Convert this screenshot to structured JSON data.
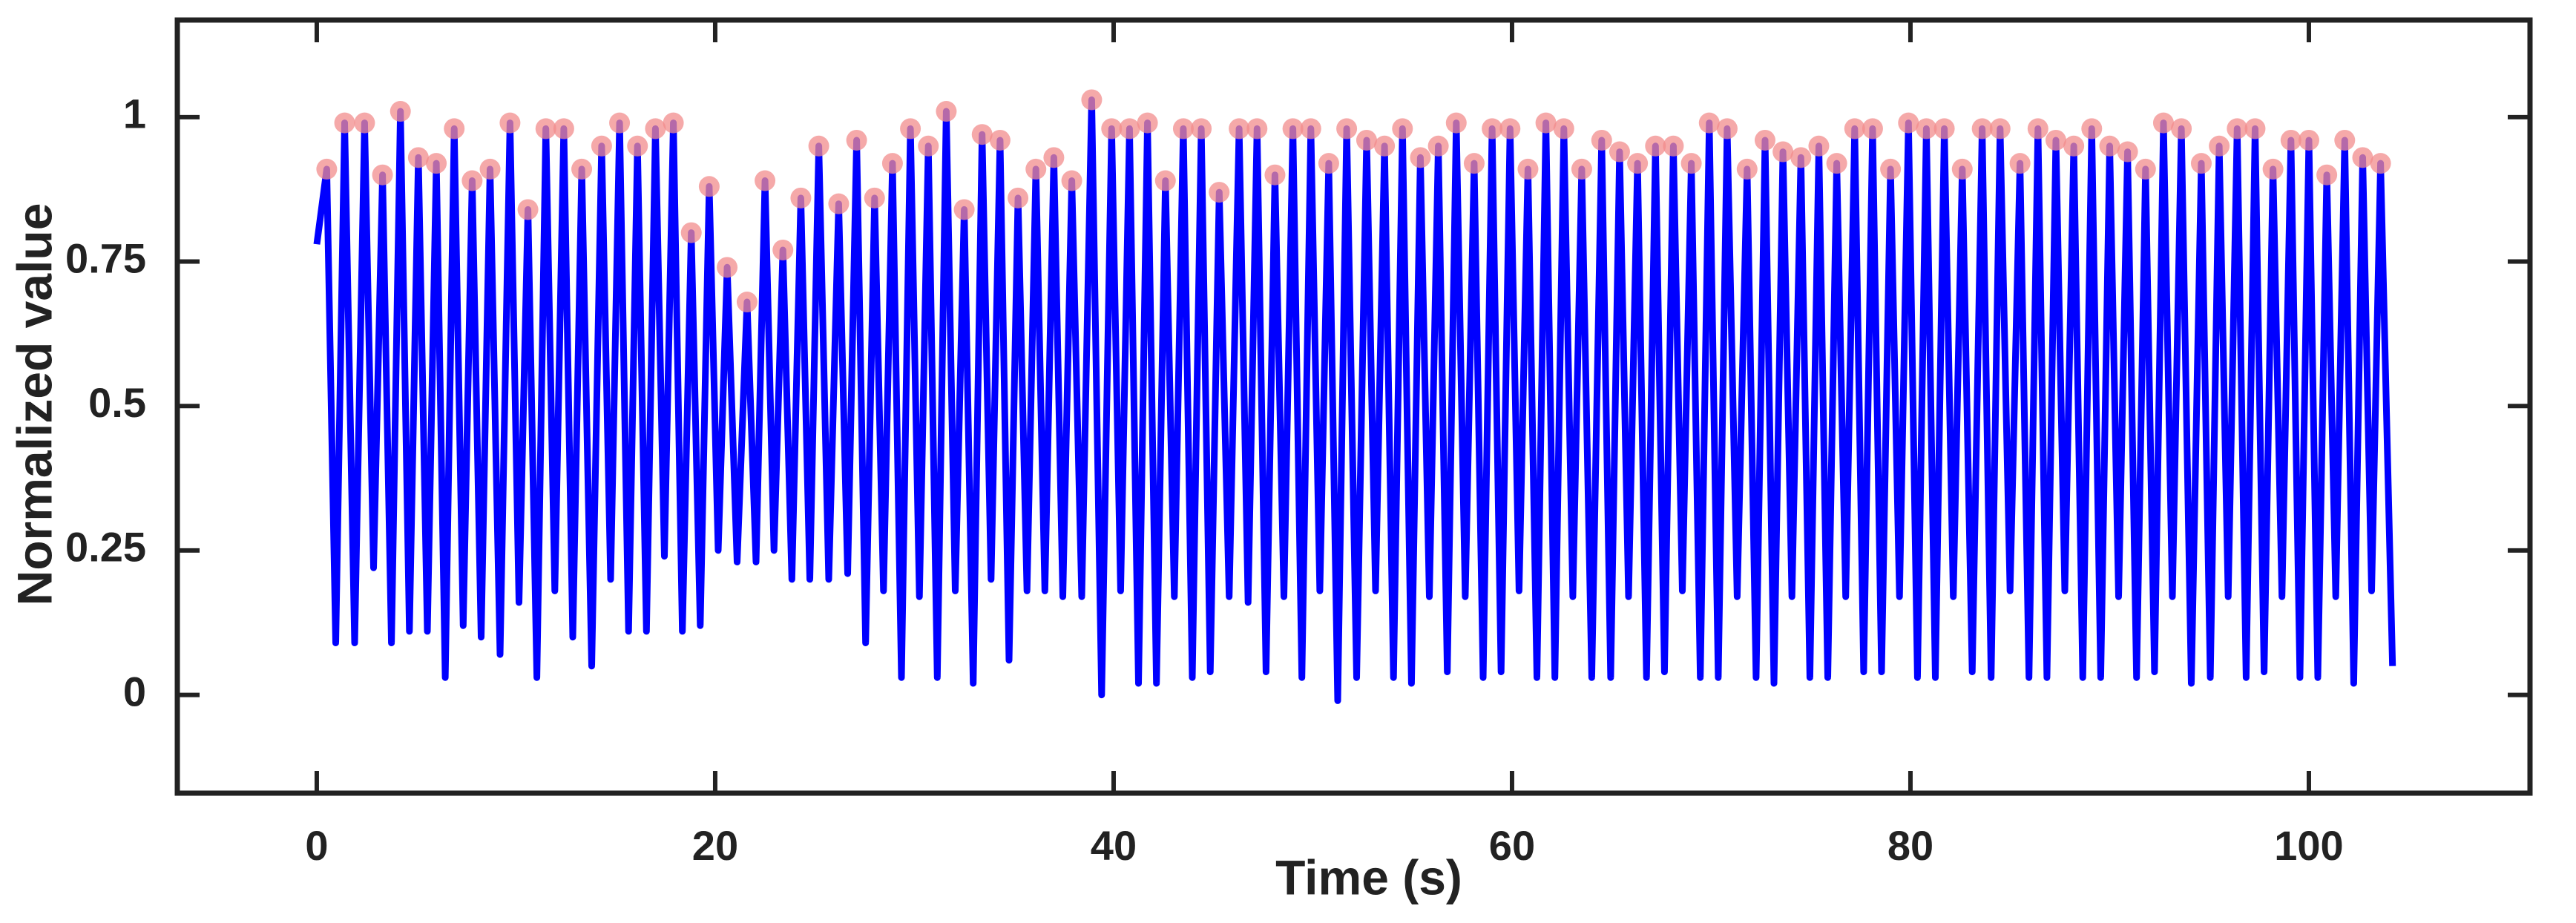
{
  "chart_data": {
    "type": "line",
    "xlabel": "Time (s)",
    "ylabel": "Normalized value",
    "xlim": [
      -7,
      111.1
    ],
    "ylim": [
      -0.17,
      1.168
    ],
    "xticks": [
      0,
      20,
      40,
      60,
      80,
      100
    ],
    "yticks": [
      0,
      0.25,
      0.5,
      0.75,
      1
    ],
    "series": [
      {
        "type": "line",
        "color": "#0000ff",
        "x": [
          0,
          0.5,
          0.95,
          1.4,
          1.9,
          2.4,
          2.85,
          3.3,
          3.75,
          4.2,
          4.65,
          5.1,
          5.55,
          6.0,
          6.45,
          6.9,
          7.35,
          7.8,
          8.25,
          8.7,
          9.2,
          9.7,
          10.15,
          10.6,
          11.05,
          11.5,
          11.95,
          12.4,
          12.85,
          13.3,
          13.8,
          14.3,
          14.75,
          15.2,
          15.65,
          16.1,
          16.55,
          17.0,
          17.45,
          17.9,
          18.35,
          18.8,
          19.25,
          19.7,
          20.15,
          20.6,
          21.1,
          21.6,
          22.05,
          22.5,
          22.95,
          23.4,
          23.85,
          24.3,
          24.75,
          25.2,
          25.7,
          26.2,
          26.65,
          27.1,
          27.55,
          28.0,
          28.45,
          28.9,
          29.35,
          29.8,
          30.25,
          30.7,
          31.15,
          31.6,
          32.05,
          32.5,
          32.95,
          33.4,
          33.85,
          34.3,
          34.75,
          35.2,
          35.65,
          36.1,
          36.55,
          37.0,
          37.45,
          37.9,
          38.4,
          38.9,
          39.4,
          39.9,
          40.35,
          40.8,
          41.25,
          41.7,
          42.15,
          42.6,
          43.05,
          43.5,
          43.95,
          44.4,
          44.85,
          45.3,
          45.8,
          46.3,
          46.75,
          47.2,
          47.65,
          48.1,
          48.55,
          49.0,
          49.45,
          49.9,
          50.35,
          50.8,
          51.25,
          51.7,
          52.2,
          52.7,
          53.15,
          53.6,
          54.05,
          54.5,
          54.95,
          55.4,
          55.85,
          56.3,
          56.75,
          57.2,
          57.65,
          58.1,
          58.55,
          59.0,
          59.45,
          59.9,
          60.35,
          60.8,
          61.25,
          61.7,
          62.15,
          62.6,
          63.05,
          63.5,
          64.0,
          64.5,
          64.95,
          65.4,
          65.85,
          66.3,
          66.75,
          67.2,
          67.65,
          68.1,
          68.55,
          69.0,
          69.45,
          69.9,
          70.35,
          70.8,
          71.3,
          71.8,
          72.25,
          72.7,
          73.15,
          73.6,
          74.05,
          74.5,
          74.95,
          75.4,
          75.85,
          76.3,
          76.75,
          77.2,
          77.65,
          78.1,
          78.55,
          79.0,
          79.45,
          79.9,
          80.35,
          80.8,
          81.25,
          81.7,
          82.15,
          82.6,
          83.1,
          83.6,
          84.05,
          84.5,
          85.0,
          85.5,
          85.95,
          86.4,
          86.85,
          87.3,
          87.75,
          88.2,
          88.65,
          89.1,
          89.55,
          90.0,
          90.45,
          90.9,
          91.35,
          91.8,
          92.25,
          92.7,
          93.15,
          93.6,
          94.1,
          94.6,
          95.05,
          95.5,
          95.95,
          96.4,
          96.85,
          97.3,
          97.75,
          98.2,
          98.65,
          99.1,
          99.55,
          100.0,
          100.45,
          100.9,
          101.35,
          101.8,
          102.25,
          102.7,
          103.15,
          103.6,
          104.2
        ],
        "values": [
          0.78,
          0.91,
          0.09,
          0.99,
          0.09,
          0.99,
          0.22,
          0.9,
          0.09,
          1.01,
          0.11,
          0.93,
          0.11,
          0.92,
          0.03,
          0.98,
          0.12,
          0.89,
          0.1,
          0.91,
          0.07,
          0.99,
          0.16,
          0.84,
          0.03,
          0.98,
          0.18,
          0.98,
          0.1,
          0.91,
          0.05,
          0.95,
          0.2,
          0.99,
          0.11,
          0.95,
          0.11,
          0.98,
          0.24,
          0.99,
          0.11,
          0.8,
          0.12,
          0.88,
          0.25,
          0.74,
          0.23,
          0.68,
          0.23,
          0.89,
          0.25,
          0.77,
          0.2,
          0.86,
          0.2,
          0.95,
          0.2,
          0.85,
          0.21,
          0.96,
          0.09,
          0.86,
          0.18,
          0.92,
          0.03,
          0.98,
          0.17,
          0.95,
          0.03,
          1.01,
          0.18,
          0.84,
          0.02,
          0.97,
          0.2,
          0.96,
          0.06,
          0.86,
          0.18,
          0.91,
          0.18,
          0.93,
          0.17,
          0.89,
          0.17,
          1.03,
          0.0,
          0.98,
          0.18,
          0.98,
          0.02,
          0.99,
          0.02,
          0.89,
          0.17,
          0.98,
          0.03,
          0.98,
          0.04,
          0.87,
          0.17,
          0.98,
          0.16,
          0.98,
          0.04,
          0.9,
          0.17,
          0.98,
          0.03,
          0.98,
          0.18,
          0.92,
          -0.01,
          0.98,
          0.03,
          0.96,
          0.18,
          0.95,
          0.03,
          0.98,
          0.02,
          0.93,
          0.17,
          0.95,
          0.04,
          0.99,
          0.17,
          0.92,
          0.03,
          0.98,
          0.04,
          0.98,
          0.18,
          0.91,
          0.03,
          0.99,
          0.03,
          0.98,
          0.17,
          0.91,
          0.03,
          0.96,
          0.03,
          0.94,
          0.17,
          0.92,
          0.03,
          0.95,
          0.04,
          0.95,
          0.18,
          0.92,
          0.03,
          0.99,
          0.03,
          0.98,
          0.17,
          0.91,
          0.03,
          0.96,
          0.02,
          0.94,
          0.17,
          0.93,
          0.03,
          0.95,
          0.03,
          0.92,
          0.17,
          0.98,
          0.04,
          0.98,
          0.04,
          0.91,
          0.17,
          0.99,
          0.03,
          0.98,
          0.03,
          0.98,
          0.17,
          0.91,
          0.04,
          0.98,
          0.03,
          0.98,
          0.18,
          0.92,
          0.03,
          0.98,
          0.03,
          0.96,
          0.18,
          0.95,
          0.03,
          0.98,
          0.03,
          0.95,
          0.17,
          0.94,
          0.03,
          0.91,
          0.04,
          0.99,
          0.17,
          0.98,
          0.02,
          0.92,
          0.03,
          0.95,
          0.17,
          0.98,
          0.03,
          0.98,
          0.04,
          0.91,
          0.17,
          0.96,
          0.03,
          0.96,
          0.03,
          0.9,
          0.17,
          0.96,
          0.02,
          0.93,
          0.18,
          0.92,
          0.05
        ]
      },
      {
        "type": "scatter",
        "color": "#f28c8c",
        "x": [
          0.5,
          1.4,
          2.4,
          3.3,
          4.2,
          5.1,
          6.0,
          6.9,
          7.8,
          8.7,
          9.7,
          10.6,
          11.5,
          12.4,
          13.3,
          14.3,
          15.2,
          16.1,
          17.0,
          17.9,
          18.8,
          19.7,
          20.6,
          21.6,
          22.5,
          23.4,
          24.3,
          25.2,
          26.2,
          27.1,
          28.0,
          28.9,
          29.8,
          30.7,
          31.6,
          32.5,
          33.4,
          34.3,
          35.2,
          36.1,
          37.0,
          37.9,
          38.9,
          39.9,
          40.8,
          41.7,
          42.6,
          43.5,
          44.4,
          45.3,
          46.3,
          47.2,
          48.1,
          49.0,
          49.9,
          50.8,
          51.7,
          52.7,
          53.6,
          54.5,
          55.4,
          56.3,
          57.2,
          58.1,
          59.0,
          59.9,
          60.8,
          61.7,
          62.6,
          63.5,
          64.5,
          65.4,
          66.3,
          67.2,
          68.1,
          69.0,
          69.9,
          70.8,
          71.8,
          72.7,
          73.6,
          74.5,
          75.4,
          76.3,
          77.2,
          78.1,
          79.0,
          79.9,
          80.8,
          81.7,
          82.6,
          83.6,
          84.5,
          85.5,
          86.4,
          87.3,
          88.2,
          89.1,
          90.0,
          90.9,
          91.8,
          92.7,
          93.6,
          94.6,
          95.5,
          96.4,
          97.3,
          98.2,
          99.1,
          100.0,
          100.9,
          101.8,
          102.7,
          103.6
        ],
        "values": [
          0.91,
          0.99,
          0.99,
          0.9,
          1.01,
          0.93,
          0.92,
          0.98,
          0.89,
          0.91,
          0.99,
          0.84,
          0.98,
          0.98,
          0.91,
          0.95,
          0.99,
          0.95,
          0.98,
          0.99,
          0.8,
          0.88,
          0.74,
          0.68,
          0.89,
          0.77,
          0.86,
          0.95,
          0.85,
          0.96,
          0.86,
          0.92,
          0.98,
          0.95,
          1.01,
          0.84,
          0.97,
          0.96,
          0.86,
          0.91,
          0.93,
          0.89,
          1.03,
          0.98,
          0.98,
          0.99,
          0.89,
          0.98,
          0.98,
          0.87,
          0.98,
          0.98,
          0.9,
          0.98,
          0.98,
          0.92,
          0.98,
          0.96,
          0.95,
          0.98,
          0.93,
          0.95,
          0.99,
          0.92,
          0.98,
          0.98,
          0.91,
          0.99,
          0.98,
          0.91,
          0.96,
          0.94,
          0.92,
          0.95,
          0.95,
          0.92,
          0.99,
          0.98,
          0.91,
          0.96,
          0.94,
          0.93,
          0.95,
          0.92,
          0.98,
          0.98,
          0.91,
          0.99,
          0.98,
          0.98,
          0.91,
          0.98,
          0.98,
          0.92,
          0.98,
          0.96,
          0.95,
          0.98,
          0.95,
          0.94,
          0.91,
          0.99,
          0.98,
          0.92,
          0.95,
          0.98,
          0.98,
          0.91,
          0.96,
          0.96,
          0.9,
          0.96,
          0.93,
          0.92
        ]
      }
    ]
  }
}
